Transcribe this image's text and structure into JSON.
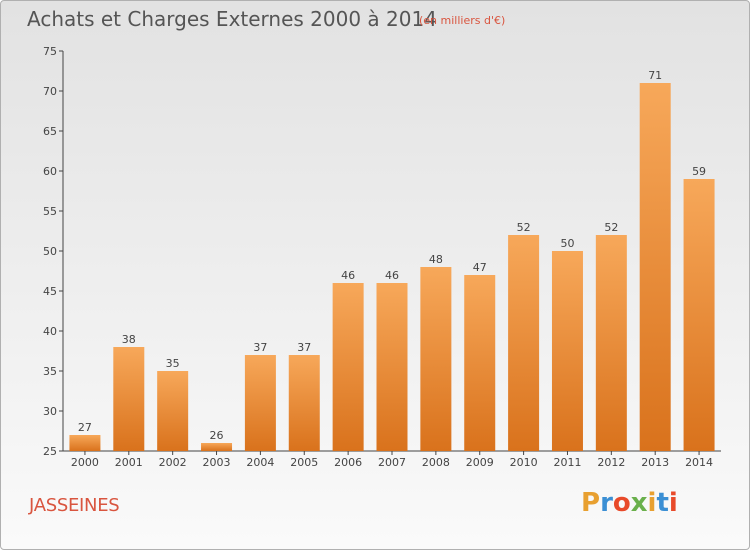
{
  "header": {
    "title": "Achats et Charges Externes 2000 à 2014",
    "subtitle": "(en milliers d'€)"
  },
  "footer": {
    "commune": "JASSEINES",
    "logo": {
      "text": "Proxiti",
      "colors": [
        "#e8a030",
        "#3b8fd4",
        "#e84a2a",
        "#6ab04c",
        "#e8a030",
        "#3b8fd4",
        "#e84a2a"
      ]
    }
  },
  "chart_data": {
    "type": "bar",
    "title": "Achats et Charges Externes 2000 à 2014",
    "subtitle": "(en milliers d'€)",
    "xlabel": "",
    "ylabel": "",
    "categories": [
      "2000",
      "2001",
      "2002",
      "2003",
      "2004",
      "2005",
      "2006",
      "2007",
      "2008",
      "2009",
      "2010",
      "2011",
      "2012",
      "2013",
      "2014"
    ],
    "values": [
      27,
      38,
      35,
      26,
      37,
      37,
      46,
      46,
      48,
      47,
      52,
      50,
      52,
      71,
      59
    ],
    "ylim": [
      25,
      75
    ],
    "yticks": [
      25,
      30,
      35,
      40,
      45,
      50,
      55,
      60,
      65,
      70,
      75
    ],
    "grid": false,
    "legend": "none",
    "bar_color_top": "#f7a85a",
    "bar_color_bottom": "#d9721c"
  }
}
